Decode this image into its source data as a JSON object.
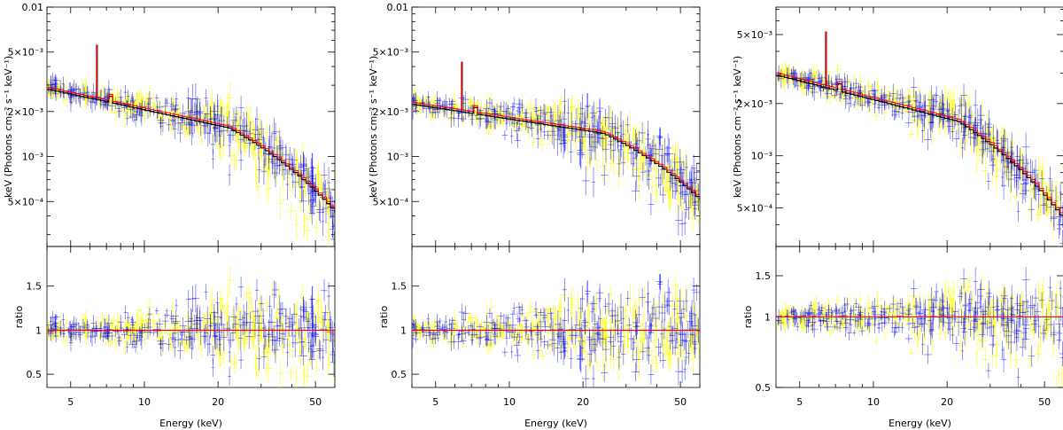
{
  "chart_data": [
    {
      "type": "scatter",
      "panel": "left",
      "xscale": "log",
      "xlim": [
        4,
        60
      ],
      "xlabel": "Energy (keV)",
      "xticks": [
        5,
        10,
        20,
        50
      ],
      "spectrum": {
        "ylabel": "keV (Photons cm⁻² s⁻¹ keV⁻¹)",
        "yscale": "log",
        "ylim": [
          0.00025,
          0.01
        ],
        "yticks": [
          {
            "value": 0.01,
            "label": "0.01"
          },
          {
            "value": 0.005,
            "label": "5×10⁻³"
          },
          {
            "value": 0.002,
            "label": "2×10⁻³"
          },
          {
            "value": 0.001,
            "label": "10⁻³"
          },
          {
            "value": 0.0005,
            "label": "5×10⁻⁴"
          }
        ],
        "model": {
          "base": 0.0029,
          "slope": 0.35,
          "break": 22,
          "fold": 40,
          "line_energy": 6.4,
          "line_peak": 0.0056,
          "edge_energy": 7.1
        }
      },
      "ratio": {
        "ylabel": "ratio",
        "yscale": "linear",
        "ylim": [
          0.35,
          1.95
        ],
        "yticks": [
          {
            "value": 0.5,
            "label": "0.5"
          },
          {
            "value": 1,
            "label": "1"
          },
          {
            "value": 1.5,
            "label": "1.5"
          }
        ],
        "scatter_max": 0.45
      },
      "series": [
        {
          "color": "#0000ff"
        },
        {
          "color": "#ffff00"
        },
        {
          "color": "#000000"
        },
        {
          "color": "#ff0000"
        }
      ]
    },
    {
      "type": "scatter",
      "panel": "middle",
      "xscale": "log",
      "xlim": [
        4,
        60
      ],
      "xlabel": "Energy (keV)",
      "xticks": [
        5,
        10,
        20,
        50
      ],
      "spectrum": {
        "ylabel": "keV (Photons cm⁻² s⁻¹ keV⁻¹)",
        "yscale": "log",
        "ylim": [
          0.00025,
          0.01
        ],
        "yticks": [
          {
            "value": 0.01,
            "label": "0.01"
          },
          {
            "value": 0.005,
            "label": "5×10⁻³"
          },
          {
            "value": 0.002,
            "label": "2×10⁻³"
          },
          {
            "value": 0.001,
            "label": "10⁻³"
          },
          {
            "value": 0.0005,
            "label": "5×10⁻⁴"
          }
        ],
        "model": {
          "base": 0.0023,
          "slope": 0.25,
          "break": 24,
          "fold": 45,
          "line_energy": 6.4,
          "line_peak": 0.0043,
          "edge_energy": 7.1
        }
      },
      "ratio": {
        "ylabel": "ratio",
        "yscale": "linear",
        "ylim": [
          0.35,
          1.95
        ],
        "yticks": [
          {
            "value": 0.5,
            "label": "0.5"
          },
          {
            "value": 1,
            "label": "1"
          },
          {
            "value": 1.5,
            "label": "1.5"
          }
        ],
        "scatter_max": 0.5
      },
      "series": [
        {
          "color": "#0000ff"
        },
        {
          "color": "#ffff00"
        },
        {
          "color": "#000000"
        },
        {
          "color": "#ff0000"
        }
      ]
    },
    {
      "type": "scatter",
      "panel": "right",
      "xscale": "log",
      "xlim": [
        4,
        60
      ],
      "xlabel": "Energy (keV)",
      "xticks": [
        5,
        10,
        20,
        50
      ],
      "spectrum": {
        "ylabel": "keV (Photons cm⁻² s⁻¹ keV⁻¹)",
        "yscale": "log",
        "ylim": [
          0.0003,
          0.0072
        ],
        "yticks": [
          {
            "value": 0.005,
            "label": "5×10⁻³"
          },
          {
            "value": 0.002,
            "label": "2×10⁻³"
          },
          {
            "value": 0.001,
            "label": "10⁻³"
          },
          {
            "value": 0.0005,
            "label": "5×10⁻⁴"
          }
        ],
        "model": {
          "base": 0.003,
          "slope": 0.36,
          "break": 22,
          "fold": 40,
          "line_energy": 6.4,
          "line_peak": 0.0052,
          "edge_energy": 7.1
        }
      },
      "ratio": {
        "ylabel": "ratio",
        "yscale": "log",
        "ylim": [
          0.5,
          2.0
        ],
        "yticks": [
          {
            "value": 0.5,
            "label": "0.5"
          },
          {
            "value": 1,
            "label": "1"
          },
          {
            "value": 1.5,
            "label": "1.5"
          }
        ],
        "scatter_max": 0.4
      },
      "series": [
        {
          "color": "#0000ff"
        },
        {
          "color": "#ffff00"
        },
        {
          "color": "#000000"
        },
        {
          "color": "#ff0000"
        }
      ]
    }
  ]
}
